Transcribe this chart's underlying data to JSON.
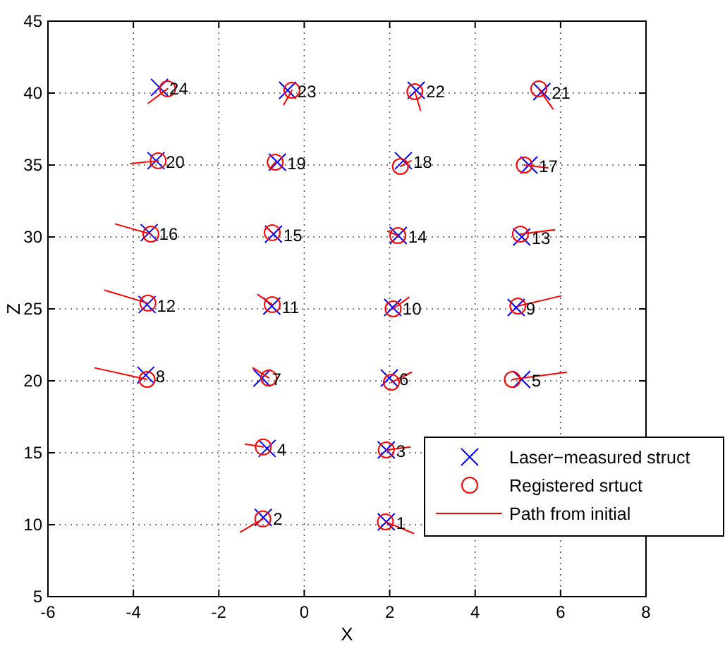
{
  "chart_data": {
    "type": "scatter",
    "xlabel": "X",
    "ylabel": "Z",
    "xlim": [
      -6,
      8
    ],
    "ylim": [
      5,
      45
    ],
    "xticks": [
      -6,
      -4,
      -2,
      0,
      2,
      4,
      6,
      8
    ],
    "yticks": [
      5,
      10,
      15,
      20,
      25,
      30,
      35,
      40,
      45
    ],
    "grid": true,
    "legend": "bottom right",
    "series": [
      {
        "type": "scatter",
        "name": "Laser−measured struct",
        "color": "#0000ff",
        "marker": "cross",
        "x": [
          1.92,
          -0.96,
          1.92,
          -0.87,
          5.09,
          1.99,
          -0.99,
          -3.71,
          4.96,
          2.07,
          -0.76,
          -3.68,
          5.09,
          2.2,
          -0.72,
          -3.63,
          5.26,
          2.32,
          -0.63,
          -3.47,
          5.56,
          2.62,
          -0.39,
          -3.39
        ],
        "values": [
          10.2,
          10.5,
          15.2,
          15.3,
          20.1,
          20.2,
          20.2,
          20.4,
          25.1,
          25.1,
          25.2,
          25.3,
          30.0,
          30.1,
          30.2,
          30.3,
          35.0,
          35.3,
          35.2,
          35.3,
          40.1,
          40.2,
          40.2,
          40.4
        ]
      },
      {
        "type": "scatter",
        "name": "Registered srtuct",
        "color": "#ff0000",
        "marker": "circle",
        "x": [
          1.9,
          -0.97,
          1.92,
          -0.96,
          4.87,
          2.04,
          -0.83,
          -3.68,
          5.0,
          2.08,
          -0.75,
          -3.66,
          5.06,
          2.19,
          -0.75,
          -3.59,
          5.15,
          2.25,
          -0.68,
          -3.42,
          5.49,
          2.59,
          -0.29,
          -3.2
        ],
        "values": [
          10.2,
          10.4,
          15.2,
          15.4,
          20.1,
          19.9,
          20.2,
          20.1,
          25.2,
          25.0,
          25.3,
          25.4,
          30.2,
          30.1,
          30.3,
          30.2,
          35.0,
          34.9,
          35.2,
          35.3,
          40.3,
          40.1,
          40.2,
          40.3
        ]
      },
      {
        "type": "line",
        "name": "Path from initial",
        "color": "#ff0000",
        "line_style": "solid",
        "x": [
          2.56,
          1.9
        ],
        "values": [
          9.4,
          10.2
        ]
      },
      {
        "type": "line",
        "color": "#ff0000",
        "x": [
          -1.49,
          -0.97
        ],
        "values": [
          9.5,
          10.4
        ]
      },
      {
        "type": "line",
        "color": "#ff0000",
        "x": [
          2.48,
          1.92
        ],
        "values": [
          15.4,
          15.2
        ]
      },
      {
        "type": "line",
        "color": "#ff0000",
        "x": [
          -1.38,
          -0.96
        ],
        "values": [
          15.6,
          15.4
        ]
      },
      {
        "type": "line",
        "color": "#ff0000",
        "x": [
          6.14,
          4.87
        ],
        "values": [
          20.6,
          20.1
        ]
      },
      {
        "type": "line",
        "color": "#ff0000",
        "x": [
          2.51,
          2.04
        ],
        "values": [
          20.6,
          19.9
        ]
      },
      {
        "type": "line",
        "color": "#ff0000",
        "x": [
          -1.2,
          -0.83
        ],
        "values": [
          20.9,
          20.2
        ]
      },
      {
        "type": "line",
        "color": "#ff0000",
        "x": [
          -4.9,
          -3.68
        ],
        "values": [
          20.9,
          20.1
        ]
      },
      {
        "type": "line",
        "color": "#ff0000",
        "x": [
          6.01,
          5.0
        ],
        "values": [
          25.9,
          25.2
        ]
      },
      {
        "type": "line",
        "color": "#ff0000",
        "x": [
          2.45,
          2.08
        ],
        "values": [
          25.8,
          25.0
        ]
      },
      {
        "type": "line",
        "color": "#ff0000",
        "x": [
          -1.09,
          -0.75
        ],
        "values": [
          26.0,
          25.3
        ]
      },
      {
        "type": "line",
        "color": "#ff0000",
        "x": [
          -4.67,
          -3.66
        ],
        "values": [
          26.3,
          25.4
        ]
      },
      {
        "type": "line",
        "color": "#ff0000",
        "x": [
          5.86,
          5.06
        ],
        "values": [
          30.5,
          30.2
        ]
      },
      {
        "type": "line",
        "color": "#ff0000",
        "x": [
          1.95,
          2.19
        ],
        "values": [
          30.4,
          30.1
        ]
      },
      {
        "type": "line",
        "color": "#ff0000",
        "x": [
          -0.9,
          -0.75
        ],
        "values": [
          30.7,
          30.3
        ]
      },
      {
        "type": "line",
        "color": "#ff0000",
        "x": [
          -4.42,
          -3.59
        ],
        "values": [
          30.9,
          30.2
        ]
      },
      {
        "type": "line",
        "color": "#ff0000",
        "x": [
          5.7,
          5.15
        ],
        "values": [
          34.8,
          35.0
        ]
      },
      {
        "type": "line",
        "color": "#ff0000",
        "x": [
          2.5,
          2.25
        ],
        "values": [
          35.3,
          34.9
        ]
      },
      {
        "type": "line",
        "color": "#ff0000",
        "x": [
          -0.79,
          -0.68
        ],
        "values": [
          34.8,
          35.2
        ]
      },
      {
        "type": "line",
        "color": "#ff0000",
        "x": [
          -4.06,
          -3.42
        ],
        "values": [
          35.1,
          35.3
        ]
      },
      {
        "type": "line",
        "color": "#ff0000",
        "x": [
          5.82,
          5.49
        ],
        "values": [
          38.9,
          40.3
        ]
      },
      {
        "type": "line",
        "color": "#ff0000",
        "x": [
          2.72,
          2.59
        ],
        "values": [
          38.8,
          40.1
        ]
      },
      {
        "type": "line",
        "color": "#ff0000",
        "x": [
          -0.48,
          -0.29
        ],
        "values": [
          39.2,
          40.2
        ]
      },
      {
        "type": "line",
        "color": "#ff0000",
        "x": [
          -3.65,
          -3.2
        ],
        "values": [
          39.3,
          40.3
        ]
      }
    ],
    "annotations": [
      {
        "text": "1",
        "x": 1.92,
        "y": 10.2
      },
      {
        "text": "2",
        "x": -0.96,
        "y": 10.5
      },
      {
        "text": "3",
        "x": 1.92,
        "y": 15.2
      },
      {
        "text": "4",
        "x": -0.87,
        "y": 15.3
      },
      {
        "text": "5",
        "x": 5.09,
        "y": 20.1
      },
      {
        "text": "6",
        "x": 1.99,
        "y": 20.2
      },
      {
        "text": "7",
        "x": -0.99,
        "y": 20.2
      },
      {
        "text": "8",
        "x": -3.71,
        "y": 20.4
      },
      {
        "text": "9",
        "x": 4.96,
        "y": 25.1
      },
      {
        "text": "10",
        "x": 2.07,
        "y": 25.1
      },
      {
        "text": "11",
        "x": -0.76,
        "y": 25.2
      },
      {
        "text": "12",
        "x": -3.68,
        "y": 25.3
      },
      {
        "text": "13",
        "x": 5.09,
        "y": 30.0
      },
      {
        "text": "14",
        "x": 2.2,
        "y": 30.1
      },
      {
        "text": "15",
        "x": -0.72,
        "y": 30.2
      },
      {
        "text": "16",
        "x": -3.63,
        "y": 30.3
      },
      {
        "text": "17",
        "x": 5.26,
        "y": 35.0
      },
      {
        "text": "18",
        "x": 2.32,
        "y": 35.3
      },
      {
        "text": "19",
        "x": -0.63,
        "y": 35.2
      },
      {
        "text": "20",
        "x": -3.47,
        "y": 35.3
      },
      {
        "text": "21",
        "x": 5.56,
        "y": 40.1
      },
      {
        "text": "22",
        "x": 2.62,
        "y": 40.2
      },
      {
        "text": "23",
        "x": -0.39,
        "y": 40.2
      },
      {
        "text": "24",
        "x": -3.39,
        "y": 40.4
      }
    ]
  }
}
